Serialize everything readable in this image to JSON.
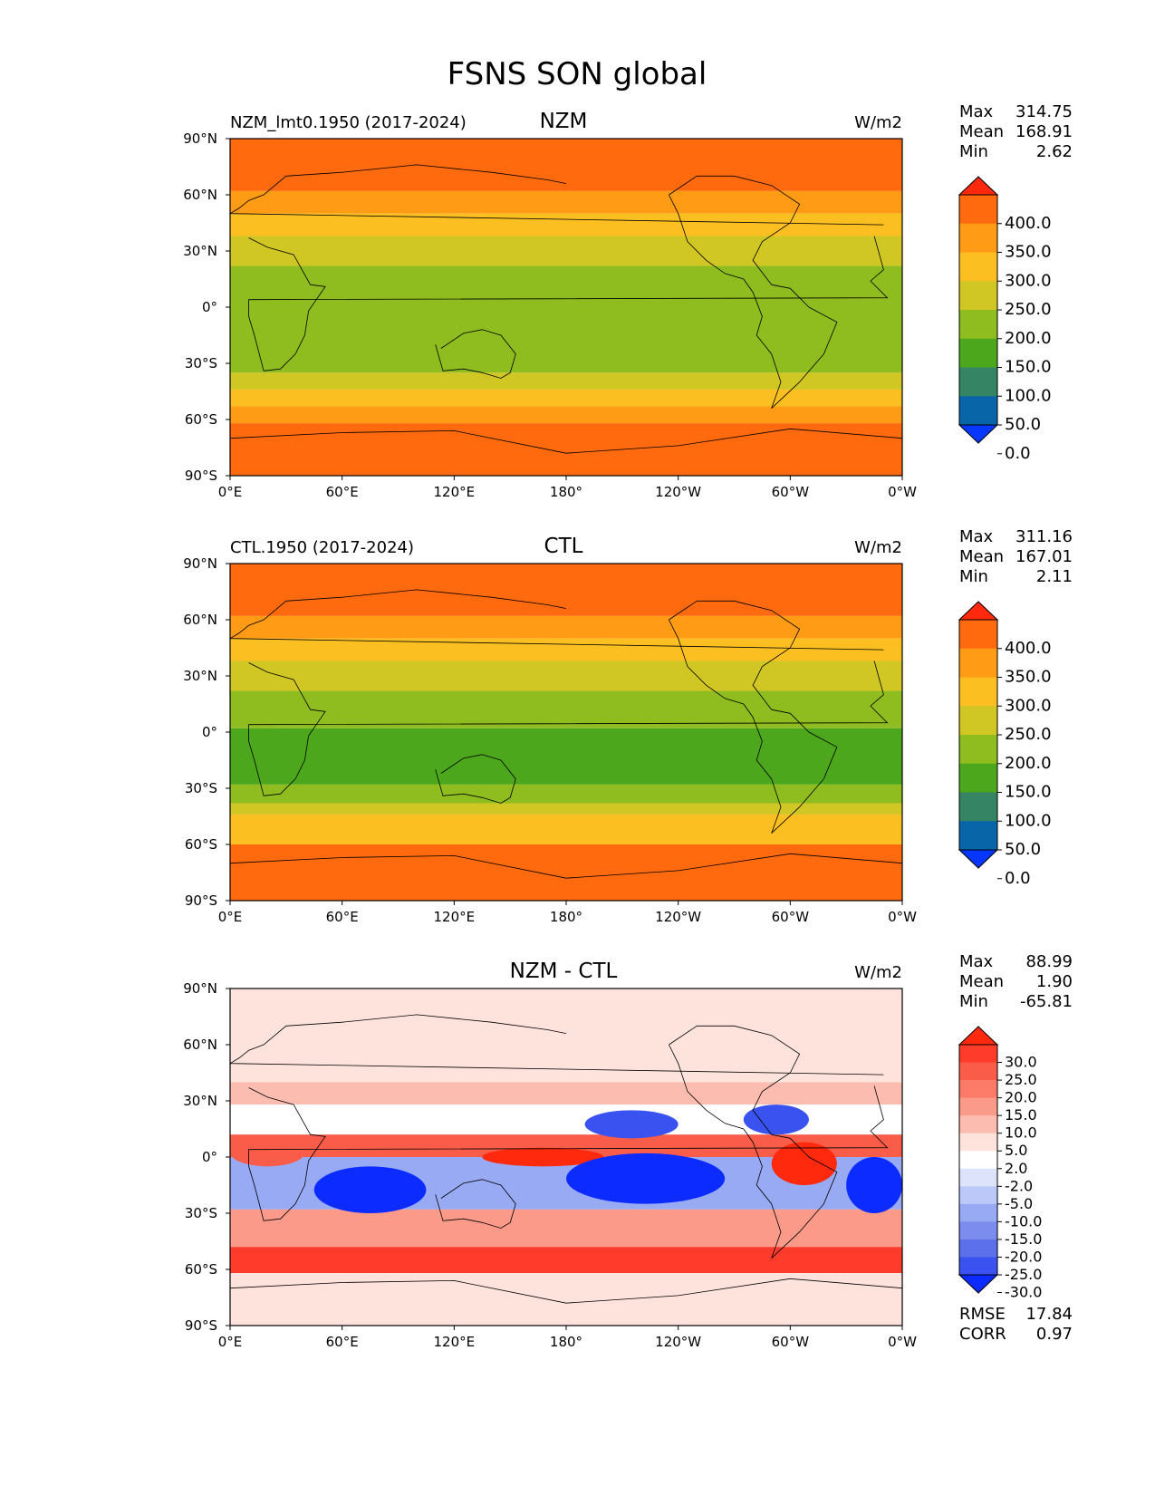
{
  "page_title": "FSNS SON global",
  "chart_data": [
    {
      "type": "heatmap",
      "title": "NZM",
      "left_title": "NZM_lmt0.1950 (2017-2024)",
      "units": "W/m2",
      "stats": {
        "max_label": "Max",
        "max": "314.75",
        "mean_label": "Mean",
        "mean": "168.91",
        "min_label": "Min",
        "min": "2.62"
      },
      "y_ticks": [
        "90°N",
        "60°N",
        "30°N",
        "0°",
        "30°S",
        "60°S",
        "90°S"
      ],
      "x_ticks": [
        "0°E",
        "60°E",
        "120°E",
        "180°",
        "120°W",
        "60°W",
        "0°W"
      ],
      "xlim": [
        0,
        360
      ],
      "ylim": [
        -90,
        90
      ],
      "colorbar": {
        "levels": [
          "400.0",
          "350.0",
          "300.0",
          "250.0",
          "200.0",
          "150.0",
          "100.0",
          "50.0",
          "0.0"
        ],
        "colors": [
          "#ff2a0e",
          "#ff6a0e",
          "#ff9b15",
          "#fbbf22",
          "#d0c624",
          "#8fbc1e",
          "#4ca71c",
          "#358564",
          "#0865a8",
          "#0537ff"
        ]
      },
      "bands": [
        {
          "from": 90,
          "to": 62,
          "level": 1
        },
        {
          "from": 62,
          "to": 50,
          "level": 2
        },
        {
          "from": 50,
          "to": 38,
          "level": 3
        },
        {
          "from": 38,
          "to": 22,
          "level": 4
        },
        {
          "from": 22,
          "to": -35,
          "level": 5
        },
        {
          "from": -35,
          "to": -44,
          "level": 4
        },
        {
          "from": -44,
          "to": -53,
          "level": 3
        },
        {
          "from": -53,
          "to": -62,
          "level": 2
        },
        {
          "from": -62,
          "to": -90,
          "level": 1
        }
      ]
    },
    {
      "type": "heatmap",
      "title": "CTL",
      "left_title": "CTL.1950 (2017-2024)",
      "units": "W/m2",
      "stats": {
        "max_label": "Max",
        "max": "311.16",
        "mean_label": "Mean",
        "mean": "167.01",
        "min_label": "Min",
        "min": "2.11"
      },
      "y_ticks": [
        "90°N",
        "60°N",
        "30°N",
        "0°",
        "30°S",
        "60°S",
        "90°S"
      ],
      "x_ticks": [
        "0°E",
        "60°E",
        "120°E",
        "180°",
        "120°W",
        "60°W",
        "0°W"
      ],
      "xlim": [
        0,
        360
      ],
      "ylim": [
        -90,
        90
      ],
      "colorbar": {
        "levels": [
          "400.0",
          "350.0",
          "300.0",
          "250.0",
          "200.0",
          "150.0",
          "100.0",
          "50.0",
          "0.0"
        ],
        "colors": [
          "#ff2a0e",
          "#ff6a0e",
          "#ff9b15",
          "#fbbf22",
          "#d0c624",
          "#8fbc1e",
          "#4ca71c",
          "#358564",
          "#0865a8",
          "#0537ff"
        ]
      },
      "bands": [
        {
          "from": 90,
          "to": 62,
          "level": 1
        },
        {
          "from": 62,
          "to": 50,
          "level": 2
        },
        {
          "from": 50,
          "to": 38,
          "level": 3
        },
        {
          "from": 38,
          "to": 22,
          "level": 4
        },
        {
          "from": 22,
          "to": 2,
          "level": 5
        },
        {
          "from": 2,
          "to": -28,
          "level": 6
        },
        {
          "from": -28,
          "to": -38,
          "level": 5
        },
        {
          "from": -38,
          "to": -44,
          "level": 4
        },
        {
          "from": -44,
          "to": -60,
          "level": 3
        },
        {
          "from": -60,
          "to": -90,
          "level": 1
        }
      ]
    },
    {
      "type": "heatmap",
      "title": "NZM - CTL",
      "left_title": "",
      "units": "W/m2",
      "stats": {
        "max_label": "Max",
        "max": "88.99",
        "mean_label": "Mean",
        "mean": "1.90",
        "min_label": "Min",
        "min": "-65.81"
      },
      "extra_stats": {
        "rmse_label": "RMSE",
        "rmse": "17.84",
        "corr_label": "CORR",
        "corr": "0.97"
      },
      "y_ticks": [
        "90°N",
        "60°N",
        "30°N",
        "0°",
        "30°S",
        "60°S",
        "90°S"
      ],
      "x_ticks": [
        "0°E",
        "60°E",
        "120°E",
        "180°",
        "120°W",
        "60°W",
        "0°W"
      ],
      "xlim": [
        0,
        360
      ],
      "ylim": [
        -90,
        90
      ],
      "colorbar": {
        "levels": [
          "30.0",
          "25.0",
          "20.0",
          "15.0",
          "10.0",
          "5.0",
          "2.0",
          "-2.0",
          "-5.0",
          "-10.0",
          "-15.0",
          "-20.0",
          "-25.0",
          "-30.0"
        ],
        "colors": [
          "#ff2a0e",
          "#ff3b2b",
          "#f95c48",
          "#fb7a68",
          "#fc9a89",
          "#fdbcb0",
          "#fee3dc",
          "#ffffff",
          "#dde3fb",
          "#bcc9f8",
          "#98aaf3",
          "#7b8cee",
          "#5b70ea",
          "#3a52ef",
          "#0b2bff"
        ]
      },
      "bands": [
        {
          "from": 90,
          "to": 40,
          "level": 6
        },
        {
          "from": 40,
          "to": 28,
          "level": 5
        },
        {
          "from": 28,
          "to": 12,
          "level": 7
        },
        {
          "from": 12,
          "to": 0,
          "level": 2
        },
        {
          "from": 0,
          "to": -28,
          "level": 10
        },
        {
          "from": -28,
          "to": -48,
          "level": 4
        },
        {
          "from": -48,
          "to": -62,
          "level": 1
        },
        {
          "from": -62,
          "to": -90,
          "level": 6
        }
      ],
      "anomalies": [
        {
          "lon": [
            135,
            200
          ],
          "lat": [
            -5,
            5
          ],
          "level": 0
        },
        {
          "lon": [
            180,
            265
          ],
          "lat": [
            -25,
            2
          ],
          "level": 14
        },
        {
          "lon": [
            330,
            360
          ],
          "lat": [
            -30,
            0
          ],
          "level": 14
        },
        {
          "lon": [
            45,
            105
          ],
          "lat": [
            -30,
            -5
          ],
          "level": 14
        },
        {
          "lon": [
            190,
            240
          ],
          "lat": [
            10,
            25
          ],
          "level": 13
        },
        {
          "lon": [
            275,
            310
          ],
          "lat": [
            12,
            28
          ],
          "level": 13
        },
        {
          "lon": [
            290,
            325
          ],
          "lat": [
            -15,
            8
          ],
          "level": 0
        },
        {
          "lon": [
            0,
            40
          ],
          "lat": [
            -5,
            10
          ],
          "level": 2
        }
      ]
    }
  ]
}
